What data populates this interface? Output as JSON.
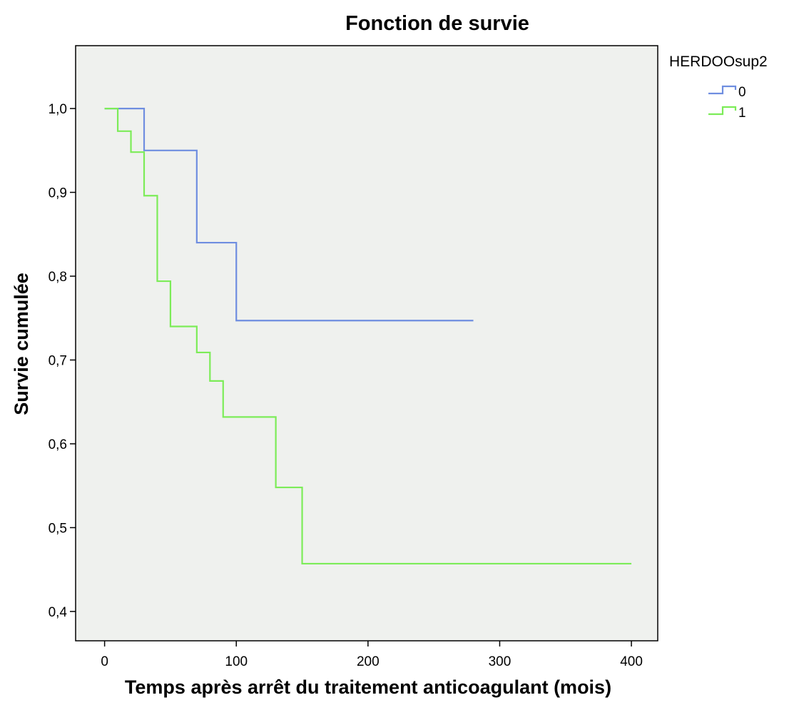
{
  "chart_data": {
    "type": "line",
    "step": true,
    "title": "Fonction de survie",
    "xlabel": "Temps après arrêt du traitement anticoagulant (mois)",
    "ylabel": "Survie cumulée",
    "xlim": [
      -22,
      420
    ],
    "ylim": [
      0.365,
      1.075
    ],
    "xticks": [
      0,
      100,
      200,
      300,
      400
    ],
    "xtick_labels": [
      "0",
      "100",
      "200",
      "300",
      "400"
    ],
    "yticks": [
      0.4,
      0.5,
      0.6,
      0.7,
      0.8,
      0.9,
      1.0
    ],
    "ytick_labels": [
      "0,4",
      "0,5",
      "0,6",
      "0,7",
      "0,8",
      "0,9",
      "1,0"
    ],
    "grid": false,
    "plot_background": "#eff1ee",
    "legend": {
      "title": "HERDOOsup2",
      "position": "right"
    },
    "series": [
      {
        "name": "0",
        "color": "#6f8ee0",
        "x": [
          0,
          30,
          70,
          100,
          280
        ],
        "y": [
          1.0,
          0.95,
          0.84,
          0.747,
          0.747
        ]
      },
      {
        "name": "1",
        "color": "#7cec58",
        "x": [
          0,
          10,
          20,
          30,
          40,
          50,
          70,
          80,
          90,
          130,
          150,
          400
        ],
        "y": [
          1.0,
          0.973,
          0.948,
          0.896,
          0.794,
          0.74,
          0.709,
          0.675,
          0.632,
          0.548,
          0.457,
          0.457
        ]
      }
    ]
  }
}
